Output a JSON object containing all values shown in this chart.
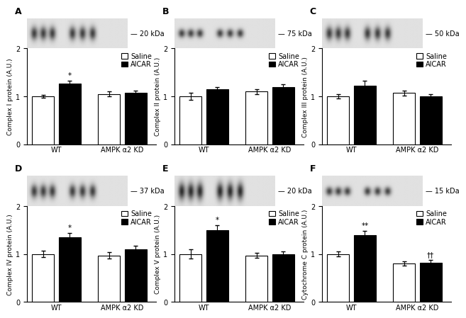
{
  "panels": [
    {
      "label": "A",
      "ylabel": "Complex I protein (A.U.)",
      "kda": "20 kDa",
      "groups": [
        "WT",
        "AMPK α2 KD"
      ],
      "saline_vals": [
        1.0,
        1.05
      ],
      "aicar_vals": [
        1.27,
        1.07
      ],
      "saline_err": [
        0.03,
        0.05
      ],
      "aicar_err": [
        0.05,
        0.05
      ],
      "aicar_sig": [
        "*",
        ""
      ],
      "saline_sig": [
        "",
        ""
      ],
      "show_legend": true,
      "blot_style": "thick"
    },
    {
      "label": "B",
      "ylabel": "Complex II protein (A.U.)",
      "kda": "75 kDa",
      "groups": [
        "WT",
        "AMPK α2 KD"
      ],
      "saline_vals": [
        1.0,
        1.1
      ],
      "aicar_vals": [
        1.15,
        1.2
      ],
      "saline_err": [
        0.07,
        0.05
      ],
      "aicar_err": [
        0.05,
        0.05
      ],
      "aicar_sig": [
        "",
        ""
      ],
      "saline_sig": [
        "",
        ""
      ],
      "show_legend": true,
      "blot_style": "thin"
    },
    {
      "label": "C",
      "ylabel": "Complex III protein (A.U.)",
      "kda": "50 kDa",
      "groups": [
        "WT",
        "AMPK α2 KD"
      ],
      "saline_vals": [
        1.0,
        1.07
      ],
      "aicar_vals": [
        1.22,
        1.0
      ],
      "saline_err": [
        0.05,
        0.05
      ],
      "aicar_err": [
        0.1,
        0.05
      ],
      "aicar_sig": [
        "",
        ""
      ],
      "saline_sig": [
        "",
        ""
      ],
      "show_legend": true,
      "blot_style": "thick"
    },
    {
      "label": "D",
      "ylabel": "Complex IV protein (A.U.)",
      "kda": "37 kDa",
      "groups": [
        "WT",
        "AMPK α2 KD"
      ],
      "saline_vals": [
        1.0,
        0.97
      ],
      "aicar_vals": [
        1.35,
        1.1
      ],
      "saline_err": [
        0.07,
        0.07
      ],
      "aicar_err": [
        0.08,
        0.07
      ],
      "aicar_sig": [
        "*",
        ""
      ],
      "saline_sig": [
        "",
        ""
      ],
      "show_legend": true,
      "blot_style": "thick"
    },
    {
      "label": "E",
      "ylabel": "Complex V protein (A.U.)",
      "kda": "20 kDa",
      "groups": [
        "WT",
        "AMPK α2 KD"
      ],
      "saline_vals": [
        1.0,
        0.97
      ],
      "aicar_vals": [
        1.5,
        1.0
      ],
      "saline_err": [
        0.1,
        0.05
      ],
      "aicar_err": [
        0.1,
        0.05
      ],
      "aicar_sig": [
        "*",
        ""
      ],
      "saline_sig": [
        "",
        ""
      ],
      "show_legend": true,
      "blot_style": "very_thick"
    },
    {
      "label": "F",
      "ylabel": "Cytochrome C protein (A.U.)",
      "kda": "15 kDa",
      "groups": [
        "WT",
        "AMPK α2 KD"
      ],
      "saline_vals": [
        1.0,
        0.8
      ],
      "aicar_vals": [
        1.4,
        0.82
      ],
      "saline_err": [
        0.05,
        0.05
      ],
      "aicar_err": [
        0.08,
        0.05
      ],
      "aicar_sig": [
        "**",
        "††"
      ],
      "saline_sig": [
        "",
        ""
      ],
      "show_legend": true,
      "blot_style": "thin"
    }
  ],
  "bar_width": 0.28,
  "saline_color": "white",
  "aicar_color": "black",
  "ylim": [
    0,
    2.0
  ],
  "yticks": [
    0,
    1,
    2
  ],
  "edge_color": "black",
  "linewidth": 0.8,
  "capsize": 2,
  "fontsize_label": 6.5,
  "fontsize_tick": 7,
  "fontsize_legend": 7,
  "fontsize_panel": 9,
  "fontsize_kda": 7
}
